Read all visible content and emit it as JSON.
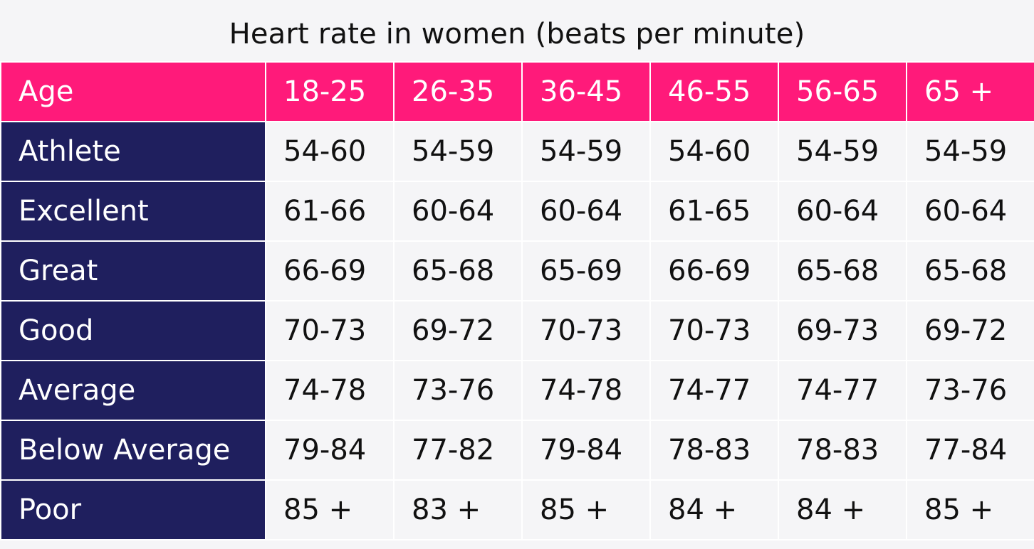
{
  "title": "Heart rate in women (beats per minute)",
  "colors": {
    "header_bg": "#ff1a7a",
    "row_header_bg": "#1f1f5e",
    "cell_bg": "#f5f5f7"
  },
  "table": {
    "corner_label": "Age",
    "age_groups": [
      "18-25",
      "26-35",
      "36-45",
      "46-55",
      "56-65",
      "65 +"
    ],
    "rows": [
      {
        "label": "Athlete",
        "values": [
          "54-60",
          "54-59",
          "54-59",
          "54-60",
          "54-59",
          "54-59"
        ]
      },
      {
        "label": "Excellent",
        "values": [
          "61-66",
          "60-64",
          "60-64",
          "61-65",
          "60-64",
          "60-64"
        ]
      },
      {
        "label": "Great",
        "values": [
          "66-69",
          "65-68",
          "65-69",
          "66-69",
          "65-68",
          "65-68"
        ]
      },
      {
        "label": "Good",
        "values": [
          "70-73",
          "69-72",
          "70-73",
          "70-73",
          "69-73",
          "69-72"
        ]
      },
      {
        "label": "Average",
        "values": [
          "74-78",
          "73-76",
          "74-78",
          "74-77",
          "74-77",
          "73-76"
        ]
      },
      {
        "label": "Below Average",
        "values": [
          "79-84",
          "77-82",
          "79-84",
          "78-83",
          "78-83",
          "77-84"
        ]
      },
      {
        "label": "Poor",
        "values": [
          "85 +",
          "83 +",
          "85 +",
          "84 +",
          "84 +",
          "85 +"
        ]
      }
    ]
  }
}
